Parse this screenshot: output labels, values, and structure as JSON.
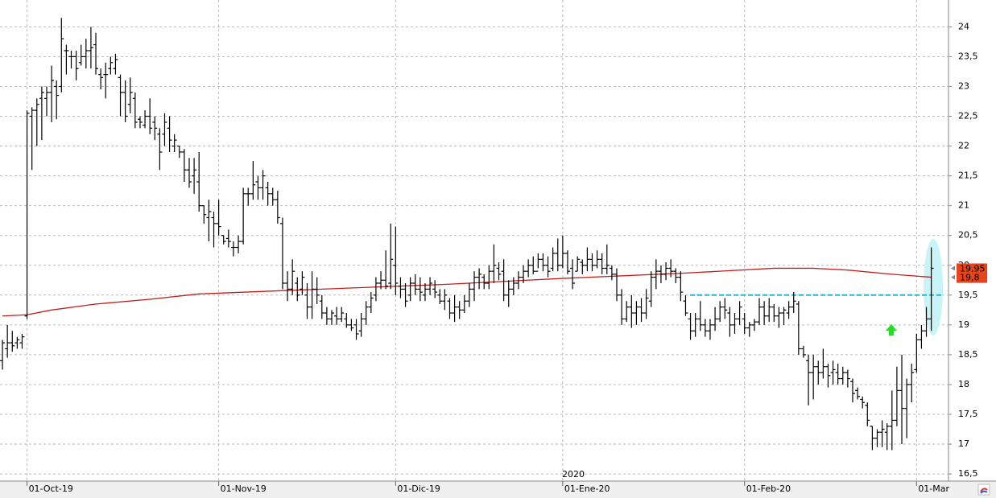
{
  "chart_data": {
    "type": "ohlc",
    "color": "#000000",
    "xlim": [
      -0.5,
      192.5
    ],
    "ylim": [
      16.38,
      24.45
    ],
    "grid": true,
    "xticks": [
      {
        "value": 5,
        "label": "01-Oct-19"
      },
      {
        "value": 44,
        "label": "01-Nov-19"
      },
      {
        "value": 80,
        "label": "01-Dic-19"
      },
      {
        "value": 114,
        "label": "01-Ene-20"
      },
      {
        "value": 151,
        "label": "01-Feb-20"
      },
      {
        "value": 186,
        "label": "01-Mar"
      }
    ],
    "yticks": [
      {
        "value": 16.5,
        "label": "16,5"
      },
      17,
      {
        "value": 17.5,
        "label": "17,5"
      },
      18,
      {
        "value": 18.5,
        "label": "18,5"
      },
      19,
      {
        "value": 19.5,
        "label": "19,5"
      },
      20,
      {
        "value": 20.5,
        "label": "20,5"
      },
      21,
      {
        "value": 21.5,
        "label": "21,5"
      },
      22,
      {
        "value": 22.5,
        "label": "22,5"
      },
      23,
      {
        "value": 23.5,
        "label": "23,5"
      },
      24
    ],
    "year_label": "2020",
    "high": [
      18.75,
      19.0,
      18.9,
      18.8,
      18.85,
      22.6,
      22.65,
      22.8,
      23.0,
      23.0,
      23.35,
      23.1,
      24.15,
      23.7,
      23.6,
      23.6,
      23.7,
      23.8,
      24.0,
      23.9,
      23.3,
      23.4,
      23.5,
      23.55,
      23.2,
      23.1,
      23.15,
      22.9,
      22.5,
      22.6,
      22.8,
      22.5,
      22.3,
      22.55,
      22.5,
      22.2,
      22.0,
      21.95,
      21.8,
      21.8,
      21.9,
      21.0,
      21.1,
      20.9,
      21.1,
      20.5,
      20.6,
      20.4,
      20.5,
      21.3,
      21.3,
      21.75,
      21.5,
      21.6,
      21.4,
      21.3,
      21.25,
      20.8,
      19.9,
      20.1,
      19.8,
      19.9,
      19.7,
      19.9,
      19.8,
      19.5,
      19.3,
      19.25,
      19.3,
      19.3,
      19.2,
      19.1,
      19.1,
      19.2,
      19.4,
      19.55,
      19.8,
      19.9,
      20.25,
      20.7,
      20.65,
      19.8,
      19.7,
      19.8,
      19.85,
      19.8,
      19.7,
      19.8,
      19.75,
      19.6,
      19.6,
      19.45,
      19.5,
      19.4,
      19.5,
      19.7,
      19.9,
      19.95,
      19.85,
      20.0,
      20.35,
      20.05,
      20.1,
      19.75,
      19.8,
      19.9,
      20.0,
      20.1,
      20.15,
      20.2,
      20.2,
      20.15,
      20.3,
      20.45,
      20.5,
      20.25,
      20.1,
      20.15,
      20.1,
      20.3,
      20.2,
      20.25,
      20.2,
      20.35,
      20.0,
      19.95,
      19.6,
      19.4,
      19.5,
      19.4,
      19.45,
      19.6,
      19.9,
      20.1,
      20.0,
      20.05,
      20.1,
      19.95,
      19.9,
      19.5,
      19.2,
      19.2,
      19.4,
      19.1,
      19.1,
      19.3,
      19.4,
      19.45,
      19.3,
      19.2,
      19.4,
      19.2,
      19.05,
      19.1,
      19.45,
      19.4,
      19.45,
      19.35,
      19.3,
      19.3,
      19.4,
      19.55,
      19.4,
      18.65,
      18.5,
      18.5,
      18.4,
      18.6,
      18.35,
      18.4,
      18.35,
      18.3,
      18.25,
      18.1,
      17.95,
      17.8,
      17.7,
      17.3,
      17.25,
      17.4,
      17.35,
      17.9,
      18.3,
      18.5,
      18.1,
      18.35,
      18.85,
      19.0,
      19.3,
      20.3
    ],
    "low": [
      18.25,
      18.45,
      18.55,
      18.6,
      18.6,
      19.1,
      21.6,
      22.0,
      22.1,
      22.5,
      22.4,
      22.45,
      22.9,
      23.2,
      23.3,
      23.1,
      23.35,
      23.3,
      23.3,
      23.2,
      22.95,
      22.8,
      23.2,
      23.2,
      22.5,
      22.4,
      22.55,
      22.3,
      22.3,
      22.3,
      22.2,
      22.1,
      21.6,
      22.0,
      21.9,
      21.9,
      21.8,
      21.4,
      21.3,
      21.2,
      20.9,
      20.7,
      20.4,
      20.3,
      20.5,
      20.35,
      20.3,
      20.15,
      20.2,
      20.35,
      21.0,
      21.1,
      21.1,
      21.1,
      21.0,
      21.0,
      20.7,
      19.6,
      19.4,
      19.5,
      19.4,
      19.5,
      19.1,
      19.1,
      19.35,
      19.1,
      19.0,
      19.0,
      19.0,
      19.05,
      18.95,
      18.9,
      18.75,
      18.8,
      19.0,
      19.2,
      19.4,
      19.6,
      19.6,
      19.6,
      19.5,
      19.45,
      19.3,
      19.4,
      19.5,
      19.4,
      19.4,
      19.5,
      19.45,
      19.35,
      19.25,
      19.1,
      19.05,
      19.1,
      19.2,
      19.3,
      19.4,
      19.6,
      19.6,
      19.6,
      19.7,
      19.75,
      19.4,
      19.3,
      19.5,
      19.6,
      19.7,
      19.8,
      19.85,
      19.95,
      19.9,
      19.8,
      19.9,
      19.9,
      19.95,
      19.85,
      19.6,
      19.9,
      19.85,
      19.9,
      19.9,
      19.95,
      19.85,
      19.85,
      19.75,
      19.4,
      19.0,
      19.05,
      18.95,
      19.0,
      19.05,
      19.1,
      19.3,
      19.6,
      19.7,
      19.75,
      19.8,
      19.7,
      19.4,
      19.15,
      18.75,
      18.8,
      18.9,
      18.8,
      18.75,
      18.9,
      19.05,
      19.1,
      18.8,
      18.85,
      19.0,
      18.85,
      18.8,
      18.9,
      19.0,
      19.0,
      19.05,
      19.05,
      18.95,
      19.0,
      19.1,
      19.2,
      18.5,
      18.45,
      17.65,
      17.75,
      18.0,
      18.1,
      17.95,
      18.0,
      18.0,
      18.0,
      17.95,
      17.7,
      17.75,
      17.6,
      17.3,
      16.9,
      16.95,
      16.95,
      16.9,
      16.9,
      17.3,
      17.0,
      17.1,
      17.7,
      18.2,
      18.6,
      18.8,
      18.9
    ],
    "open": [
      18.4,
      18.6,
      18.7,
      18.7,
      18.7,
      19.15,
      22.5,
      22.6,
      22.8,
      22.8,
      22.9,
      23.0,
      23.0,
      23.6,
      23.5,
      23.5,
      23.4,
      23.5,
      23.6,
      23.7,
      23.2,
      23.2,
      23.3,
      23.3,
      23.15,
      22.9,
      22.7,
      22.8,
      22.45,
      22.35,
      22.5,
      22.4,
      22.2,
      22.2,
      22.3,
      22.0,
      22.0,
      21.9,
      21.6,
      21.5,
      21.4,
      21.0,
      20.8,
      20.8,
      20.7,
      20.5,
      20.45,
      20.3,
      20.3,
      20.4,
      21.2,
      21.2,
      21.4,
      21.3,
      21.3,
      21.2,
      21.1,
      20.7,
      19.7,
      19.6,
      19.7,
      19.6,
      19.5,
      19.3,
      19.6,
      19.4,
      19.2,
      19.1,
      19.15,
      19.1,
      19.1,
      19.0,
      19.0,
      18.9,
      19.1,
      19.3,
      19.5,
      19.7,
      19.75,
      19.7,
      20.0,
      19.65,
      19.6,
      19.5,
      19.7,
      19.6,
      19.5,
      19.6,
      19.6,
      19.5,
      19.4,
      19.4,
      19.2,
      19.3,
      19.25,
      19.4,
      19.6,
      19.8,
      19.8,
      19.7,
      19.9,
      19.95,
      19.9,
      19.5,
      19.6,
      19.7,
      19.8,
      19.9,
      20.0,
      19.9,
      20.1,
      20.0,
      19.95,
      20.2,
      20.0,
      20.2,
      19.95,
      19.9,
      20.05,
      20.0,
      20.1,
      20.0,
      20.1,
      19.95,
      19.95,
      19.85,
      19.5,
      19.1,
      19.3,
      19.2,
      19.3,
      19.2,
      19.4,
      19.8,
      19.9,
      19.85,
      19.95,
      19.9,
      19.8,
      19.4,
      19.1,
      18.9,
      19.1,
      19.0,
      18.9,
      19.0,
      19.1,
      19.3,
      19.2,
      19.0,
      19.1,
      19.1,
      18.95,
      19.0,
      19.05,
      19.3,
      19.15,
      19.3,
      19.15,
      19.2,
      19.2,
      19.3,
      19.35,
      18.6,
      18.4,
      18.2,
      18.3,
      18.2,
      18.3,
      18.2,
      18.2,
      18.1,
      18.2,
      18.05,
      17.9,
      17.75,
      17.65,
      17.3,
      17.1,
      17.2,
      17.2,
      17.3,
      17.4,
      17.9,
      17.6,
      18.0,
      18.25,
      18.75,
      18.9,
      19.1
    ],
    "close": [
      18.7,
      18.7,
      18.65,
      18.75,
      18.8,
      22.55,
      22.6,
      22.7,
      22.9,
      22.9,
      23.1,
      22.85,
      23.8,
      23.6,
      23.5,
      23.3,
      23.5,
      23.6,
      23.65,
      23.3,
      23.15,
      23.2,
      23.4,
      23.45,
      22.9,
      22.5,
      22.9,
      22.4,
      22.4,
      22.5,
      22.3,
      22.3,
      21.9,
      22.4,
      22.1,
      22.1,
      21.9,
      21.6,
      21.4,
      21.6,
      21.0,
      20.85,
      20.9,
      20.7,
      20.65,
      20.4,
      20.4,
      20.3,
      20.4,
      21.2,
      21.2,
      21.35,
      21.3,
      21.5,
      21.2,
      21.1,
      20.8,
      19.7,
      19.6,
      19.9,
      19.5,
      19.8,
      19.3,
      19.6,
      19.5,
      19.2,
      19.1,
      19.2,
      19.1,
      19.2,
      19.0,
      18.95,
      18.85,
      19.1,
      19.3,
      19.45,
      19.7,
      19.75,
      19.65,
      20.1,
      19.7,
      19.6,
      19.4,
      19.7,
      19.6,
      19.55,
      19.6,
      19.7,
      19.55,
      19.4,
      19.5,
      19.2,
      19.3,
      19.25,
      19.4,
      19.6,
      19.8,
      19.85,
      19.7,
      19.9,
      20.0,
      19.85,
      19.5,
      19.6,
      19.7,
      19.8,
      19.9,
      20.0,
      19.9,
      20.1,
      20.0,
      19.9,
      20.2,
      20.0,
      20.2,
      19.9,
      19.7,
      20.1,
      20.0,
      20.1,
      20.0,
      20.1,
      19.95,
      20.0,
      19.85,
      19.5,
      19.1,
      19.3,
      19.2,
      19.3,
      19.2,
      19.45,
      19.8,
      19.9,
      19.85,
      19.95,
      19.9,
      19.8,
      19.55,
      19.2,
      18.9,
      19.1,
      19.0,
      18.9,
      19.0,
      19.1,
      19.3,
      19.25,
      19.0,
      19.1,
      19.3,
      18.95,
      19.0,
      19.05,
      19.3,
      19.15,
      19.3,
      19.15,
      19.2,
      19.25,
      19.3,
      19.4,
      18.6,
      18.5,
      18.2,
      18.3,
      18.2,
      18.3,
      18.15,
      18.25,
      18.1,
      18.2,
      18.1,
      17.85,
      17.8,
      17.7,
      17.4,
      17.1,
      17.2,
      17.25,
      17.3,
      17.4,
      17.9,
      17.6,
      18.0,
      18.2,
      18.75,
      18.9,
      19.1,
      19.95
    ],
    "ma": {
      "color": "#c0201c",
      "x": [
        0,
        5,
        10,
        19,
        30,
        40,
        65,
        90,
        114,
        139,
        157,
        165,
        172,
        181,
        189
      ],
      "values": [
        19.15,
        19.17,
        19.25,
        19.35,
        19.43,
        19.52,
        19.6,
        19.68,
        19.78,
        19.87,
        19.95,
        19.95,
        19.92,
        19.85,
        19.8
      ]
    },
    "hline": {
      "value": 19.5,
      "color": "#29b6c8"
    },
    "price_labels": [
      {
        "value": 19.95,
        "label": "19,95"
      },
      {
        "value": 19.8,
        "label": "19,8"
      }
    ]
  }
}
